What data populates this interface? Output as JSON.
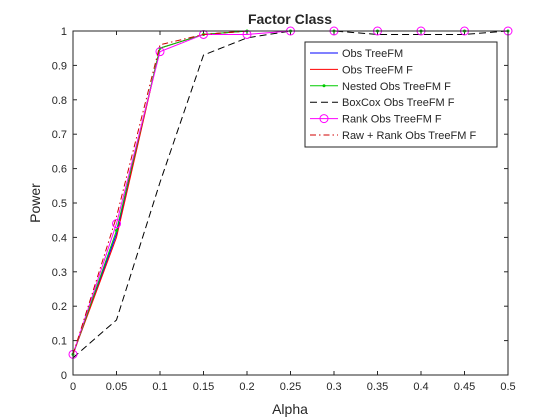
{
  "chart_data": {
    "type": "line",
    "title": "Factor Class",
    "xlabel": "Alpha",
    "ylabel": "Power",
    "xlim": [
      0,
      0.5
    ],
    "ylim": [
      0,
      1
    ],
    "x": [
      0,
      0.05,
      0.1,
      0.15,
      0.2,
      0.25,
      0.3,
      0.35,
      0.4,
      0.45,
      0.5
    ],
    "xticks": [
      "0",
      "0.05",
      "0.1",
      "0.15",
      "0.2",
      "0.25",
      "0.3",
      "0.35",
      "0.4",
      "0.45",
      "0.5"
    ],
    "yticks": [
      "0",
      "0.1",
      "0.2",
      "0.3",
      "0.4",
      "0.5",
      "0.6",
      "0.7",
      "0.8",
      "0.9",
      "1"
    ],
    "grid": false,
    "legend_position": "top-right",
    "series": [
      {
        "name": "Obs TreeFM",
        "color": "#0000ff",
        "dash": "solid",
        "marker": "none",
        "values": [
          0.06,
          0.41,
          0.95,
          0.99,
          1.0,
          1.0,
          1.0,
          1.0,
          1.0,
          1.0,
          1.0
        ]
      },
      {
        "name": "Obs TreeFM F",
        "color": "#ff0000",
        "dash": "solid",
        "marker": "none",
        "values": [
          0.06,
          0.4,
          0.95,
          0.99,
          1.0,
          1.0,
          1.0,
          1.0,
          1.0,
          1.0,
          1.0
        ]
      },
      {
        "name": "Nested Obs TreeFM F",
        "color": "#00cc00",
        "dash": "solid",
        "marker": "point",
        "values": [
          0.06,
          0.42,
          0.95,
          0.99,
          1.0,
          1.0,
          1.0,
          1.0,
          1.0,
          1.0,
          1.0
        ]
      },
      {
        "name": "BoxCox Obs TreeFM F",
        "color": "#000000",
        "dash": "dashed",
        "marker": "none",
        "values": [
          0.05,
          0.16,
          0.56,
          0.93,
          0.98,
          1.0,
          1.0,
          0.99,
          0.99,
          0.99,
          1.0
        ]
      },
      {
        "name": "Rank Obs TreeFM F",
        "color": "#ff00ff",
        "dash": "solid",
        "marker": "circle",
        "values": [
          0.06,
          0.44,
          0.94,
          0.99,
          0.99,
          1.0,
          1.0,
          1.0,
          1.0,
          1.0,
          1.0
        ]
      },
      {
        "name": "Raw + Rank Obs TreeFM F",
        "color": "#d00000",
        "dash": "dashdot",
        "marker": "none",
        "values": [
          0.06,
          0.46,
          0.96,
          0.99,
          1.0,
          1.0,
          1.0,
          1.0,
          1.0,
          1.0,
          1.0
        ]
      }
    ]
  }
}
